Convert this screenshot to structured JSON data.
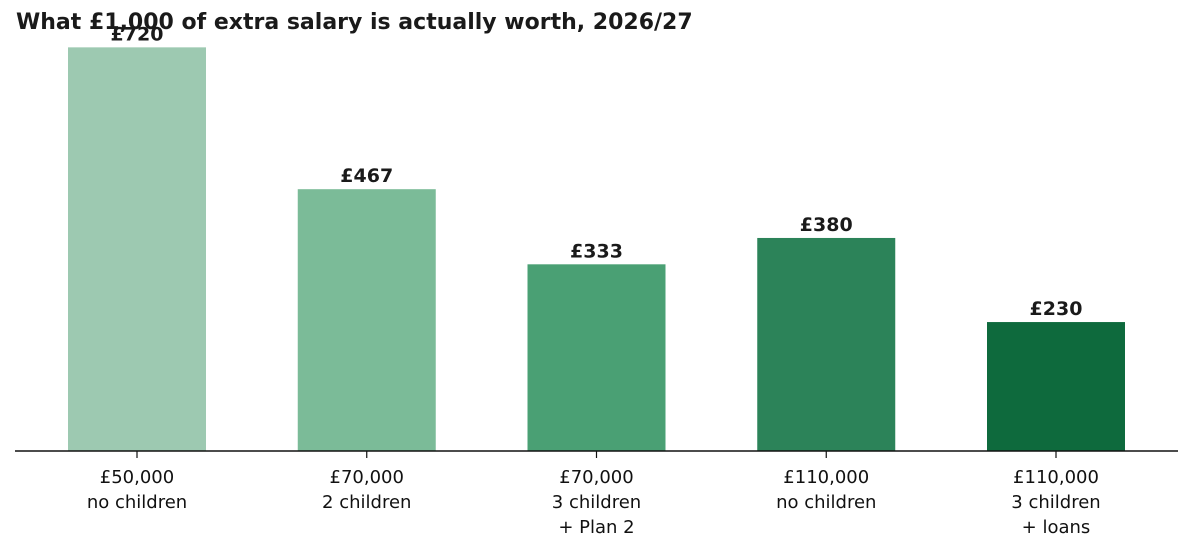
{
  "chart_data": {
    "type": "bar",
    "title": "What £1,000 of extra salary is actually worth, 2026/27",
    "categories": [
      [
        "£50,000",
        "no children"
      ],
      [
        "£70,000",
        "2 children"
      ],
      [
        "£70,000",
        "3 children",
        "+ Plan 2"
      ],
      [
        "£110,000",
        "no children"
      ],
      [
        "£110,000",
        "3 children",
        "+ loans"
      ]
    ],
    "values": [
      720,
      467,
      333,
      380,
      230
    ],
    "value_labels": [
      "£720",
      "£467",
      "£333",
      "£380",
      "£230"
    ],
    "colors": [
      "#9dc9b1",
      "#7bbb98",
      "#4aa074",
      "#2c8359",
      "#0e6a3d"
    ],
    "ylim": [
      0,
      800
    ],
    "grid": false,
    "legend": "none"
  }
}
